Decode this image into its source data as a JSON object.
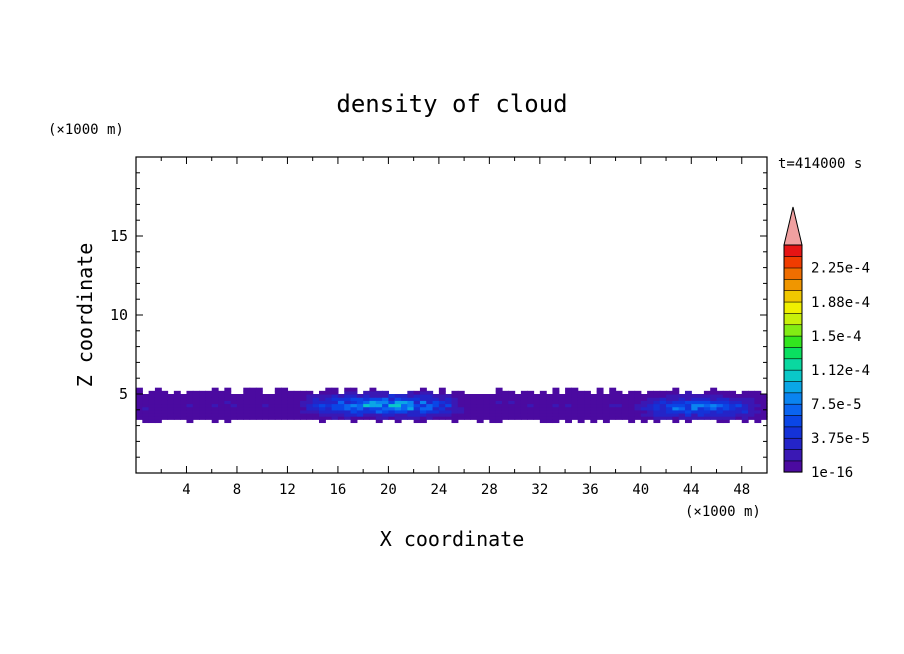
{
  "chart_data": {
    "type": "heatmap",
    "title": "density of cloud",
    "time_label": "t=414000 s",
    "xlabel": "X coordinate",
    "ylabel": "Z coordinate",
    "x_unit": "(×1000 m)",
    "y_unit": "(×1000 m)",
    "xlim": [
      0,
      50
    ],
    "ylim": [
      0,
      20
    ],
    "x_ticks": [
      4,
      8,
      12,
      16,
      20,
      24,
      28,
      32,
      36,
      40,
      44,
      48
    ],
    "y_ticks": [
      5,
      10,
      15
    ],
    "colorbar": {
      "min": 1e-16,
      "max": 0.00025,
      "levels": 20,
      "labels": [
        "1e-16",
        "3.75e-5",
        "7.5e-5",
        "1.12e-4",
        "1.5e-4",
        "1.88e-4",
        "2.25e-4"
      ],
      "extend": "max",
      "colors": [
        "#4b0aa0",
        "#3a18b4",
        "#2424c8",
        "#1432d8",
        "#0a46e6",
        "#0a64f0",
        "#0a84f0",
        "#0aa6e6",
        "#0ac8c8",
        "#0ad8a0",
        "#0ae060",
        "#32e61e",
        "#82ec14",
        "#c8f00a",
        "#f0f000",
        "#f0c800",
        "#f09600",
        "#f06e00",
        "#f03c00",
        "#e61414"
      ],
      "extend_color": "#f0a0a0"
    },
    "cloud_layer": {
      "z_bottom": 3.2,
      "z_top": 5.4
    },
    "cloud_cores": [
      {
        "x_start": 13.0,
        "x_end": 26.0,
        "z_center": 4.3,
        "peak": 9e-05
      },
      {
        "x_start": 39.5,
        "x_end": 49.5,
        "z_center": 4.2,
        "peak": 7e-05
      }
    ]
  }
}
